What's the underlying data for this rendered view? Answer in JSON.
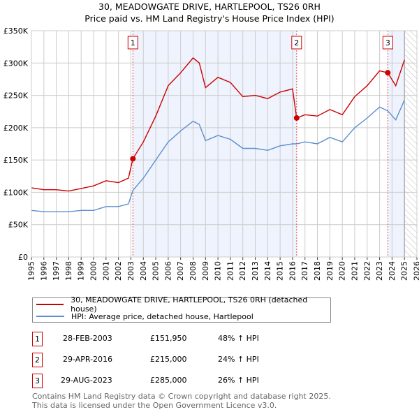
{
  "chart_data": {
    "type": "line",
    "title": "30, MEADOWGATE DRIVE, HARTLEPOOL, TS26 0RH",
    "subtitle": "Price paid vs. HM Land Registry's House Price Index (HPI)",
    "xlim": [
      1995,
      2026
    ],
    "ylim": [
      0,
      350000
    ],
    "x_ticks": [
      "1995",
      "1996",
      "1997",
      "1998",
      "1999",
      "2000",
      "2001",
      "2002",
      "2003",
      "2004",
      "2005",
      "2006",
      "2007",
      "2008",
      "2009",
      "2010",
      "2011",
      "2012",
      "2013",
      "2014",
      "2015",
      "2016",
      "2017",
      "2018",
      "2019",
      "2020",
      "2021",
      "2022",
      "2023",
      "2024",
      "2025",
      "2026"
    ],
    "y_ticks": [
      {
        "v": 0,
        "label": "£0"
      },
      {
        "v": 50000,
        "label": "£50K"
      },
      {
        "v": 100000,
        "label": "£100K"
      },
      {
        "v": 150000,
        "label": "£150K"
      },
      {
        "v": 200000,
        "label": "£200K"
      },
      {
        "v": 250000,
        "label": "£250K"
      },
      {
        "v": 300000,
        "label": "£300K"
      },
      {
        "v": 350000,
        "label": "£350K"
      }
    ],
    "series": [
      {
        "name": "30, MEADOWGATE DRIVE, HARTLEPOOL, TS26 0RH (detached house)",
        "color": "#cc0000",
        "x": [
          1995,
          1996,
          1997,
          1998,
          1999,
          2000,
          2001,
          2002,
          2002.8,
          2003.16,
          2004,
          2005,
          2006,
          2007,
          2008,
          2008.5,
          2009,
          2010,
          2011,
          2012,
          2013,
          2014,
          2015,
          2016,
          2016.33,
          2017,
          2018,
          2019,
          2020,
          2021,
          2022,
          2023,
          2023.66,
          2024.3,
          2025
        ],
        "y": [
          107000,
          104000,
          104000,
          102000,
          106000,
          110000,
          118000,
          115000,
          122000,
          151950,
          178000,
          218000,
          265000,
          285000,
          308000,
          300000,
          262000,
          278000,
          270000,
          248000,
          250000,
          245000,
          255000,
          260000,
          215000,
          220000,
          218000,
          228000,
          220000,
          248000,
          265000,
          288000,
          285000,
          265000,
          305000
        ]
      },
      {
        "name": "HPI: Average price, detached house, Hartlepool",
        "color": "#5b8fd0",
        "x": [
          1995,
          1996,
          1997,
          1998,
          1999,
          2000,
          2001,
          2002,
          2002.8,
          2003.16,
          2004,
          2005,
          2006,
          2007,
          2008,
          2008.5,
          2009,
          2010,
          2011,
          2012,
          2013,
          2014,
          2015,
          2016,
          2016.33,
          2017,
          2018,
          2019,
          2020,
          2021,
          2022,
          2023,
          2023.66,
          2024.3,
          2025
        ],
        "y": [
          72000,
          70000,
          70000,
          70000,
          72000,
          72000,
          78000,
          78000,
          82000,
          103000,
          122000,
          150000,
          178000,
          195000,
          210000,
          205000,
          180000,
          188000,
          182000,
          168000,
          168000,
          165000,
          172000,
          175000,
          175000,
          178000,
          175000,
          185000,
          178000,
          200000,
          215000,
          232000,
          226000,
          212000,
          243000
        ]
      }
    ],
    "sales": [
      {
        "n": "1",
        "x": 2003.16,
        "y": 151950,
        "date": "28-FEB-2003",
        "price": "£151,950",
        "hpi": "48% ↑ HPI"
      },
      {
        "n": "2",
        "x": 2016.33,
        "y": 215000,
        "date": "29-APR-2016",
        "price": "£215,000",
        "hpi": "24% ↑ HPI"
      },
      {
        "n": "3",
        "x": 2023.66,
        "y": 285000,
        "date": "29-AUG-2023",
        "price": "£285,000",
        "hpi": "26% ↑ HPI"
      }
    ],
    "data_end": 2025.0,
    "legend": "below"
  },
  "footer": {
    "line1": "Contains HM Land Registry data © Crown copyright and database right 2025.",
    "line2": "This data is licensed under the Open Government Licence v3.0."
  }
}
